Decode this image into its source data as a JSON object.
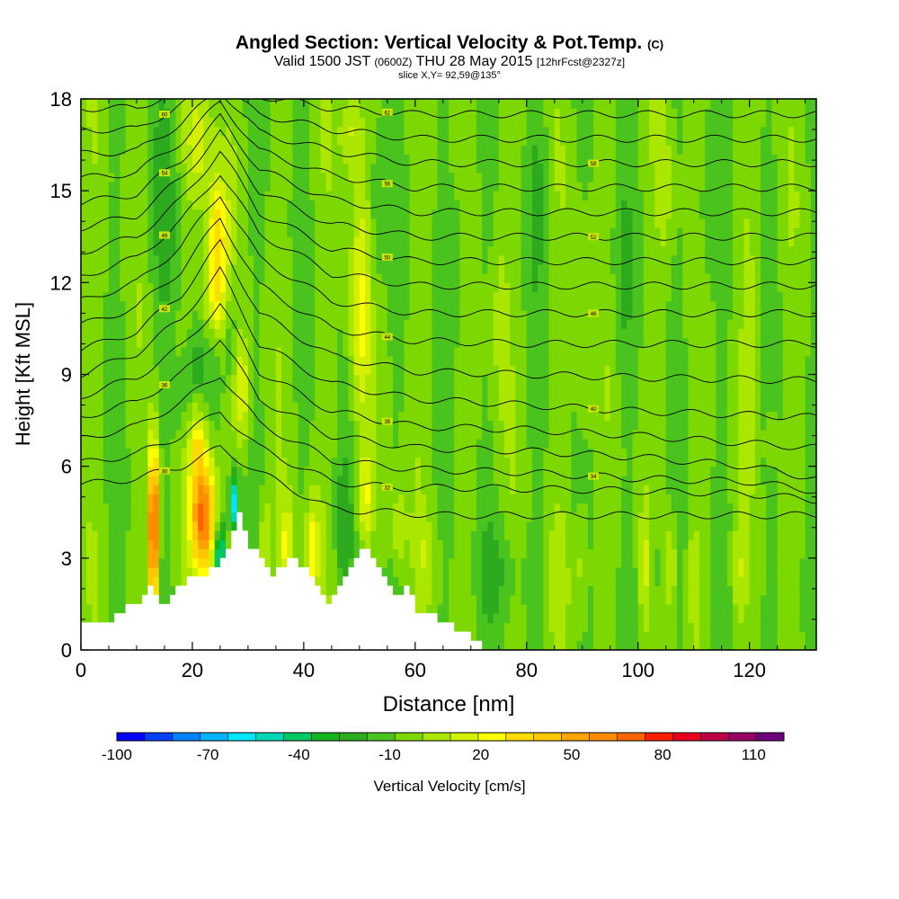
{
  "titles": {
    "main": "Angled Section: Vertical Velocity & Pot.Temp.",
    "main_tag": "(C)",
    "valid_a": "Valid 1500 JST",
    "valid_b": "(0600Z)",
    "valid_c": "THU 28 May 2015",
    "valid_d": "[12hrFcst@2327z]",
    "slice": "slice X,Y= 92,59@135°"
  },
  "chart_data": {
    "type": "heatmap",
    "xlabel": "Distance [nm]",
    "ylabel": "Height [Kft MSL]",
    "xlim": [
      0,
      132
    ],
    "ylim": [
      0,
      18
    ],
    "x_ticks": [
      0,
      20,
      40,
      60,
      80,
      100,
      120
    ],
    "y_ticks": [
      0,
      3,
      6,
      9,
      12,
      15,
      18
    ],
    "colorbar": {
      "label": "Vertical Velocity [cm/s]",
      "ticks": [
        -100,
        -70,
        -40,
        -10,
        20,
        50,
        80,
        110
      ],
      "range": [
        -100,
        120
      ],
      "step": 10,
      "colors": [
        "#0000ff",
        "#0041ff",
        "#0082ff",
        "#00b4ff",
        "#00e6ff",
        "#00d7b4",
        "#00c864",
        "#14b41e",
        "#2daa1e",
        "#4bc31e",
        "#7dd700",
        "#aae600",
        "#d2f000",
        "#ffff00",
        "#ffdc00",
        "#ffc800",
        "#ffa500",
        "#ff8c00",
        "#ff6400",
        "#ff1e00",
        "#e6001e",
        "#be0046",
        "#960064",
        "#6e007d"
      ]
    },
    "terrain": [
      [
        0,
        0.8
      ],
      [
        4,
        0.8
      ],
      [
        6,
        1.2
      ],
      [
        10,
        1.6
      ],
      [
        12,
        2.0
      ],
      [
        14,
        1.4
      ],
      [
        16,
        1.8
      ],
      [
        18,
        2.2
      ],
      [
        22,
        2.4
      ],
      [
        26,
        3.2
      ],
      [
        28,
        4.4
      ],
      [
        30,
        3.4
      ],
      [
        34,
        2.5
      ],
      [
        38,
        3.0
      ],
      [
        42,
        2.2
      ],
      [
        44,
        1.6
      ],
      [
        46,
        2.0
      ],
      [
        48,
        2.8
      ],
      [
        50,
        3.4
      ],
      [
        52,
        3.0
      ],
      [
        54,
        2.3
      ],
      [
        56,
        1.7
      ],
      [
        58,
        2.0
      ],
      [
        60,
        1.3
      ],
      [
        64,
        1.0
      ],
      [
        68,
        0.6
      ],
      [
        72,
        0.1
      ],
      [
        132,
        0.1
      ]
    ],
    "velocity_field": {
      "background": 2,
      "features": [
        {
          "x": 13,
          "z": 3.8,
          "rx": 0.9,
          "rz": 2.8,
          "w": 95
        },
        {
          "x": 13.2,
          "z": 4.8,
          "rx": 0.5,
          "rz": 1.4,
          "w": 25
        },
        {
          "x": 22,
          "z": 4.4,
          "rx": 2.2,
          "rz": 1.9,
          "w": 85
        },
        {
          "x": 21,
          "z": 7.0,
          "rx": 1.6,
          "rz": 1.4,
          "w": 30
        },
        {
          "x": 25,
          "z": 2.8,
          "rx": 0.9,
          "rz": 1.3,
          "w": -70
        },
        {
          "x": 27.5,
          "z": 4.8,
          "rx": 0.8,
          "rz": 1.0,
          "w": -60
        },
        {
          "x": 24.5,
          "z": 13.4,
          "rx": 1.9,
          "rz": 1.9,
          "w": 45
        },
        {
          "x": 24,
          "z": 11.3,
          "rx": 2.0,
          "rz": 1.2,
          "w": 28
        },
        {
          "x": 21.5,
          "z": 16.5,
          "rx": 2.8,
          "rz": 2.0,
          "w": 22
        },
        {
          "x": 29,
          "z": 8.5,
          "rx": 1.5,
          "rz": 1.6,
          "w": 28
        },
        {
          "x": 20.5,
          "z": 9.0,
          "rx": 1.8,
          "rz": 1.4,
          "w": -18
        },
        {
          "x": 27,
          "z": 10.5,
          "rx": 1.2,
          "rz": 2.0,
          "w": -14
        },
        {
          "x": 15,
          "z": 14.0,
          "rx": 3.0,
          "rz": 4.0,
          "w": -12
        },
        {
          "x": 18,
          "z": 8.0,
          "rx": 2.0,
          "rz": 1.5,
          "w": -10
        },
        {
          "x": 50,
          "z": 11.0,
          "rx": 1.8,
          "rz": 4.0,
          "w": 30
        },
        {
          "x": 48.5,
          "z": 17.0,
          "rx": 2.0,
          "rz": 1.5,
          "w": 22
        },
        {
          "x": 47,
          "z": 4.0,
          "rx": 1.5,
          "rz": 2.2,
          "w": -16
        },
        {
          "x": 53,
          "z": 14.0,
          "rx": 1.5,
          "rz": 3.0,
          "w": -12
        },
        {
          "x": 33,
          "z": 3.5,
          "rx": 1.2,
          "rz": 1.4,
          "w": 22
        },
        {
          "x": 37,
          "z": 3.3,
          "rx": 1.2,
          "rz": 1.5,
          "w": 30
        },
        {
          "x": 41.5,
          "z": 3.3,
          "rx": 1.3,
          "rz": 1.6,
          "w": 34
        },
        {
          "x": 51,
          "z": 5.0,
          "rx": 1.3,
          "rz": 1.5,
          "w": 28
        },
        {
          "x": 57,
          "z": 4.0,
          "rx": 1.4,
          "rz": 1.5,
          "w": 20
        },
        {
          "x": 62,
          "z": 3.0,
          "rx": 2.0,
          "rz": 1.3,
          "w": 12
        },
        {
          "x": 75,
          "z": 2.6,
          "rx": 4.5,
          "rz": 1.6,
          "w": -12
        },
        {
          "x": 86,
          "z": 2.5,
          "rx": 2.0,
          "rz": 2.0,
          "w": 10
        },
        {
          "x": 90,
          "z": 2.8,
          "rx": 1.2,
          "rz": 1.8,
          "w": 18
        },
        {
          "x": 103,
          "z": 2.7,
          "rx": 0.7,
          "rz": 1.8,
          "w": -18
        },
        {
          "x": 101,
          "z": 2.8,
          "rx": 0.8,
          "rz": 1.7,
          "w": 22
        },
        {
          "x": 106,
          "z": 2.8,
          "rx": 0.8,
          "rz": 1.7,
          "w": 22
        },
        {
          "x": 110,
          "z": 2.5,
          "rx": 1.0,
          "rz": 1.8,
          "w": 14
        },
        {
          "x": 118,
          "z": 2.5,
          "rx": 1.2,
          "rz": 1.5,
          "w": 16
        },
        {
          "x": 128,
          "z": 1.5,
          "rx": 3.0,
          "rz": 1.5,
          "w": -8
        },
        {
          "x": 124,
          "z": 7.0,
          "rx": 1.0,
          "rz": 0.8,
          "w": 18
        },
        {
          "x": 68,
          "z": 13.0,
          "rx": 2.0,
          "rz": 3.0,
          "w": -10
        },
        {
          "x": 82,
          "z": 15.0,
          "rx": 2.0,
          "rz": 3.0,
          "w": -10
        },
        {
          "x": 97,
          "z": 12.0,
          "rx": 2.0,
          "rz": 3.0,
          "w": -10
        },
        {
          "x": 112,
          "z": 14.0,
          "rx": 2.0,
          "rz": 3.0,
          "w": -10
        },
        {
          "x": 75,
          "z": 11.0,
          "rx": 1.5,
          "rz": 4.0,
          "w": 12
        },
        {
          "x": 90,
          "z": 10.0,
          "rx": 1.5,
          "rz": 4.0,
          "w": 10
        },
        {
          "x": 105,
          "z": 15.0,
          "rx": 1.5,
          "rz": 3.0,
          "w": 12
        },
        {
          "x": 120,
          "z": 11.0,
          "rx": 1.5,
          "rz": 4.0,
          "w": 10
        }
      ]
    },
    "pot_temp_contours": [
      {
        "label": "30",
        "heights": [
          [
            0,
            5.4
          ],
          [
            10,
            5.6
          ],
          [
            18,
            6.0
          ],
          [
            25,
            6.6
          ],
          [
            32,
            5.8
          ],
          [
            45,
            4.6
          ],
          [
            55,
            4.5
          ],
          [
            65,
            4.4
          ],
          [
            80,
            4.4
          ],
          [
            100,
            4.4
          ],
          [
            132,
            4.4
          ]
        ]
      },
      {
        "label": "32",
        "heights": [
          [
            0,
            6.1
          ],
          [
            10,
            6.4
          ],
          [
            18,
            7.0
          ],
          [
            25,
            7.8
          ],
          [
            32,
            6.6
          ],
          [
            45,
            5.5
          ],
          [
            56,
            5.3
          ],
          [
            70,
            5.3
          ],
          [
            100,
            5.2
          ],
          [
            120,
            5.1
          ],
          [
            132,
            4.9
          ]
        ]
      },
      {
        "label": "34",
        "heights": [
          [
            0,
            6.9
          ],
          [
            10,
            7.3
          ],
          [
            18,
            8.1
          ],
          [
            25,
            9.0
          ],
          [
            32,
            7.4
          ],
          [
            45,
            6.2
          ],
          [
            60,
            5.9
          ],
          [
            80,
            5.8
          ],
          [
            100,
            5.6
          ],
          [
            120,
            5.5
          ],
          [
            132,
            5.2
          ]
        ]
      },
      {
        "label": "36",
        "heights": [
          [
            0,
            7.6
          ],
          [
            10,
            8.1
          ],
          [
            18,
            9.0
          ],
          [
            25,
            10.2
          ],
          [
            32,
            8.2
          ],
          [
            45,
            7.0
          ],
          [
            60,
            6.6
          ],
          [
            80,
            6.5
          ],
          [
            100,
            6.3
          ],
          [
            120,
            6.0
          ],
          [
            132,
            5.6
          ]
        ]
      },
      {
        "label": "38",
        "heights": [
          [
            0,
            8.3
          ],
          [
            10,
            8.9
          ],
          [
            18,
            9.9
          ],
          [
            25,
            11.3
          ],
          [
            32,
            9.1
          ],
          [
            45,
            7.8
          ],
          [
            60,
            7.3
          ],
          [
            80,
            7.2
          ],
          [
            100,
            7.0
          ],
          [
            132,
            6.6
          ]
        ]
      },
      {
        "label": "40",
        "heights": [
          [
            0,
            9.0
          ],
          [
            10,
            9.7
          ],
          [
            18,
            10.8
          ],
          [
            25,
            12.4
          ],
          [
            32,
            10.0
          ],
          [
            45,
            8.7
          ],
          [
            60,
            8.2
          ],
          [
            80,
            8.0
          ],
          [
            100,
            7.8
          ],
          [
            132,
            7.6
          ]
        ]
      },
      {
        "label": "42",
        "heights": [
          [
            0,
            9.8
          ],
          [
            10,
            10.4
          ],
          [
            18,
            11.6
          ],
          [
            25,
            13.3
          ],
          [
            32,
            11.0
          ],
          [
            45,
            9.6
          ],
          [
            60,
            9.1
          ],
          [
            80,
            9.0
          ],
          [
            100,
            8.9
          ],
          [
            132,
            8.8
          ]
        ]
      },
      {
        "label": "44",
        "heights": [
          [
            0,
            10.6
          ],
          [
            10,
            11.2
          ],
          [
            18,
            12.4
          ],
          [
            25,
            14.1
          ],
          [
            32,
            11.9
          ],
          [
            45,
            10.5
          ],
          [
            60,
            10.1
          ],
          [
            80,
            10.0
          ],
          [
            100,
            10.0
          ],
          [
            132,
            10.0
          ]
        ]
      },
      {
        "label": "46",
        "heights": [
          [
            0,
            11.4
          ],
          [
            10,
            12.0
          ],
          [
            18,
            13.2
          ],
          [
            25,
            14.9
          ],
          [
            32,
            12.8
          ],
          [
            45,
            11.4
          ],
          [
            60,
            11.0
          ],
          [
            80,
            11.0
          ],
          [
            100,
            11.0
          ],
          [
            132,
            11.0
          ]
        ]
      },
      {
        "label": "48",
        "heights": [
          [
            0,
            12.2
          ],
          [
            10,
            12.8
          ],
          [
            18,
            14.0
          ],
          [
            25,
            15.6
          ],
          [
            32,
            13.6
          ],
          [
            45,
            12.3
          ],
          [
            60,
            11.9
          ],
          [
            80,
            11.9
          ],
          [
            100,
            11.9
          ],
          [
            132,
            11.9
          ]
        ]
      },
      {
        "label": "50",
        "heights": [
          [
            0,
            13.0
          ],
          [
            10,
            13.5
          ],
          [
            18,
            14.7
          ],
          [
            25,
            16.3
          ],
          [
            32,
            14.3
          ],
          [
            45,
            13.1
          ],
          [
            60,
            12.7
          ],
          [
            80,
            12.7
          ],
          [
            100,
            12.7
          ],
          [
            132,
            12.7
          ]
        ]
      },
      {
        "label": "52",
        "heights": [
          [
            0,
            13.8
          ],
          [
            10,
            14.2
          ],
          [
            18,
            15.4
          ],
          [
            25,
            16.9
          ],
          [
            32,
            15.0
          ],
          [
            45,
            13.9
          ],
          [
            60,
            13.5
          ],
          [
            80,
            13.5
          ],
          [
            100,
            13.5
          ],
          [
            132,
            13.5
          ]
        ]
      },
      {
        "label": "54",
        "heights": [
          [
            0,
            14.6
          ],
          [
            10,
            14.9
          ],
          [
            18,
            16.0
          ],
          [
            25,
            17.4
          ],
          [
            32,
            15.7
          ],
          [
            45,
            14.7
          ],
          [
            60,
            14.3
          ],
          [
            80,
            14.3
          ],
          [
            100,
            14.3
          ],
          [
            132,
            14.3
          ]
        ]
      },
      {
        "label": "56",
        "heights": [
          [
            0,
            15.4
          ],
          [
            10,
            15.6
          ],
          [
            18,
            16.6
          ],
          [
            25,
            17.9
          ],
          [
            32,
            16.3
          ],
          [
            45,
            15.5
          ],
          [
            60,
            15.1
          ],
          [
            80,
            15.1
          ],
          [
            100,
            15.1
          ],
          [
            132,
            15.1
          ]
        ]
      },
      {
        "label": "58",
        "heights": [
          [
            0,
            16.2
          ],
          [
            10,
            16.3
          ],
          [
            18,
            17.2
          ],
          [
            25,
            18.3
          ],
          [
            32,
            16.9
          ],
          [
            45,
            16.3
          ],
          [
            60,
            15.9
          ],
          [
            80,
            15.9
          ],
          [
            100,
            15.9
          ],
          [
            132,
            15.9
          ]
        ]
      },
      {
        "label": "60",
        "heights": [
          [
            0,
            17.0
          ],
          [
            10,
            17.0
          ],
          [
            18,
            17.8
          ],
          [
            24,
            18.5
          ],
          [
            32,
            17.5
          ],
          [
            45,
            17.0
          ],
          [
            60,
            16.7
          ],
          [
            80,
            16.7
          ],
          [
            100,
            16.7
          ],
          [
            132,
            16.7
          ]
        ]
      },
      {
        "label": "62",
        "heights": [
          [
            0,
            17.7
          ],
          [
            10,
            17.7
          ],
          [
            18,
            18.3
          ],
          [
            32,
            18.1
          ],
          [
            45,
            17.7
          ],
          [
            60,
            17.5
          ],
          [
            80,
            17.5
          ],
          [
            100,
            17.5
          ],
          [
            132,
            17.5
          ]
        ]
      }
    ]
  }
}
